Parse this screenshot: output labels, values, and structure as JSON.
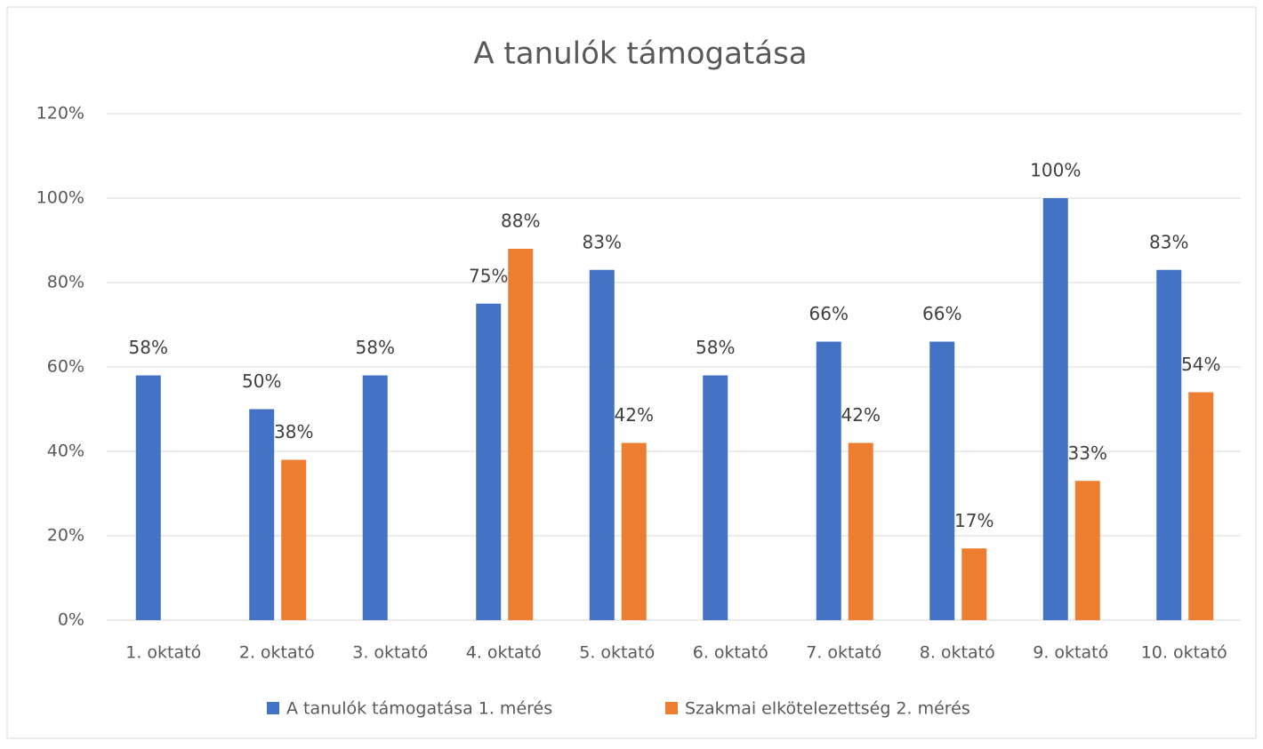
{
  "chart_data": {
    "type": "bar",
    "title": "A tanulók támogatása",
    "categories": [
      "1. oktató",
      "2. oktató",
      "3. oktató",
      "4. oktató",
      "5. oktató",
      "6. oktató",
      "7. oktató",
      "8. oktató",
      "9. oktató",
      "10. oktató"
    ],
    "series": [
      {
        "name": "A tanulók támogatása 1. mérés",
        "color": "#4472c4",
        "values": [
          58,
          50,
          58,
          75,
          83,
          58,
          66,
          66,
          100,
          83
        ],
        "value_labels": [
          "58%",
          "50%",
          "58%",
          "75%",
          "83%",
          "58%",
          "66%",
          "66%",
          "100%",
          "83%"
        ]
      },
      {
        "name": "Szakmai elkötelezettség 2. mérés",
        "color": "#ed7d31",
        "values": [
          null,
          38,
          null,
          88,
          42,
          null,
          42,
          17,
          33,
          54
        ],
        "value_labels": [
          null,
          "38%",
          null,
          "88%",
          "42%",
          null,
          "42%",
          "17%",
          "33%",
          "54%"
        ]
      }
    ],
    "ylim": [
      0,
      120
    ],
    "yticks": [
      {
        "value": 0,
        "label": "0%"
      },
      {
        "value": 20,
        "label": "20%"
      },
      {
        "value": 40,
        "label": "40%"
      },
      {
        "value": 60,
        "label": "60%"
      },
      {
        "value": 80,
        "label": "80%"
      },
      {
        "value": 100,
        "label": "100%"
      },
      {
        "value": 120,
        "label": "120%"
      }
    ],
    "grid": true,
    "legend": "bottom"
  }
}
